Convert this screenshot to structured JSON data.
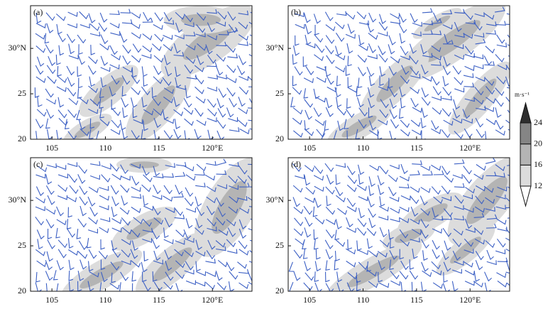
{
  "panels": [
    {
      "label": "(a)"
    },
    {
      "label": "(b)"
    },
    {
      "label": "(c)"
    },
    {
      "label": "(d)"
    }
  ],
  "x_axis": {
    "range": [
      103,
      123.7
    ],
    "ticks": [
      105,
      110,
      115,
      {
        "value": 120,
        "label": "120°E"
      }
    ]
  },
  "y_axis": {
    "range": [
      20,
      34.7
    ],
    "ticks": [
      20,
      25,
      {
        "value": 30,
        "label": "30°N"
      }
    ]
  },
  "colorbar": {
    "unit": "m·s⁻¹",
    "levels": [
      12,
      16,
      20,
      24
    ],
    "colors": [
      "#ffffff",
      "#dcdcdc",
      "#b4b4b4",
      "#858585",
      "#2e2e2e"
    ]
  }
}
